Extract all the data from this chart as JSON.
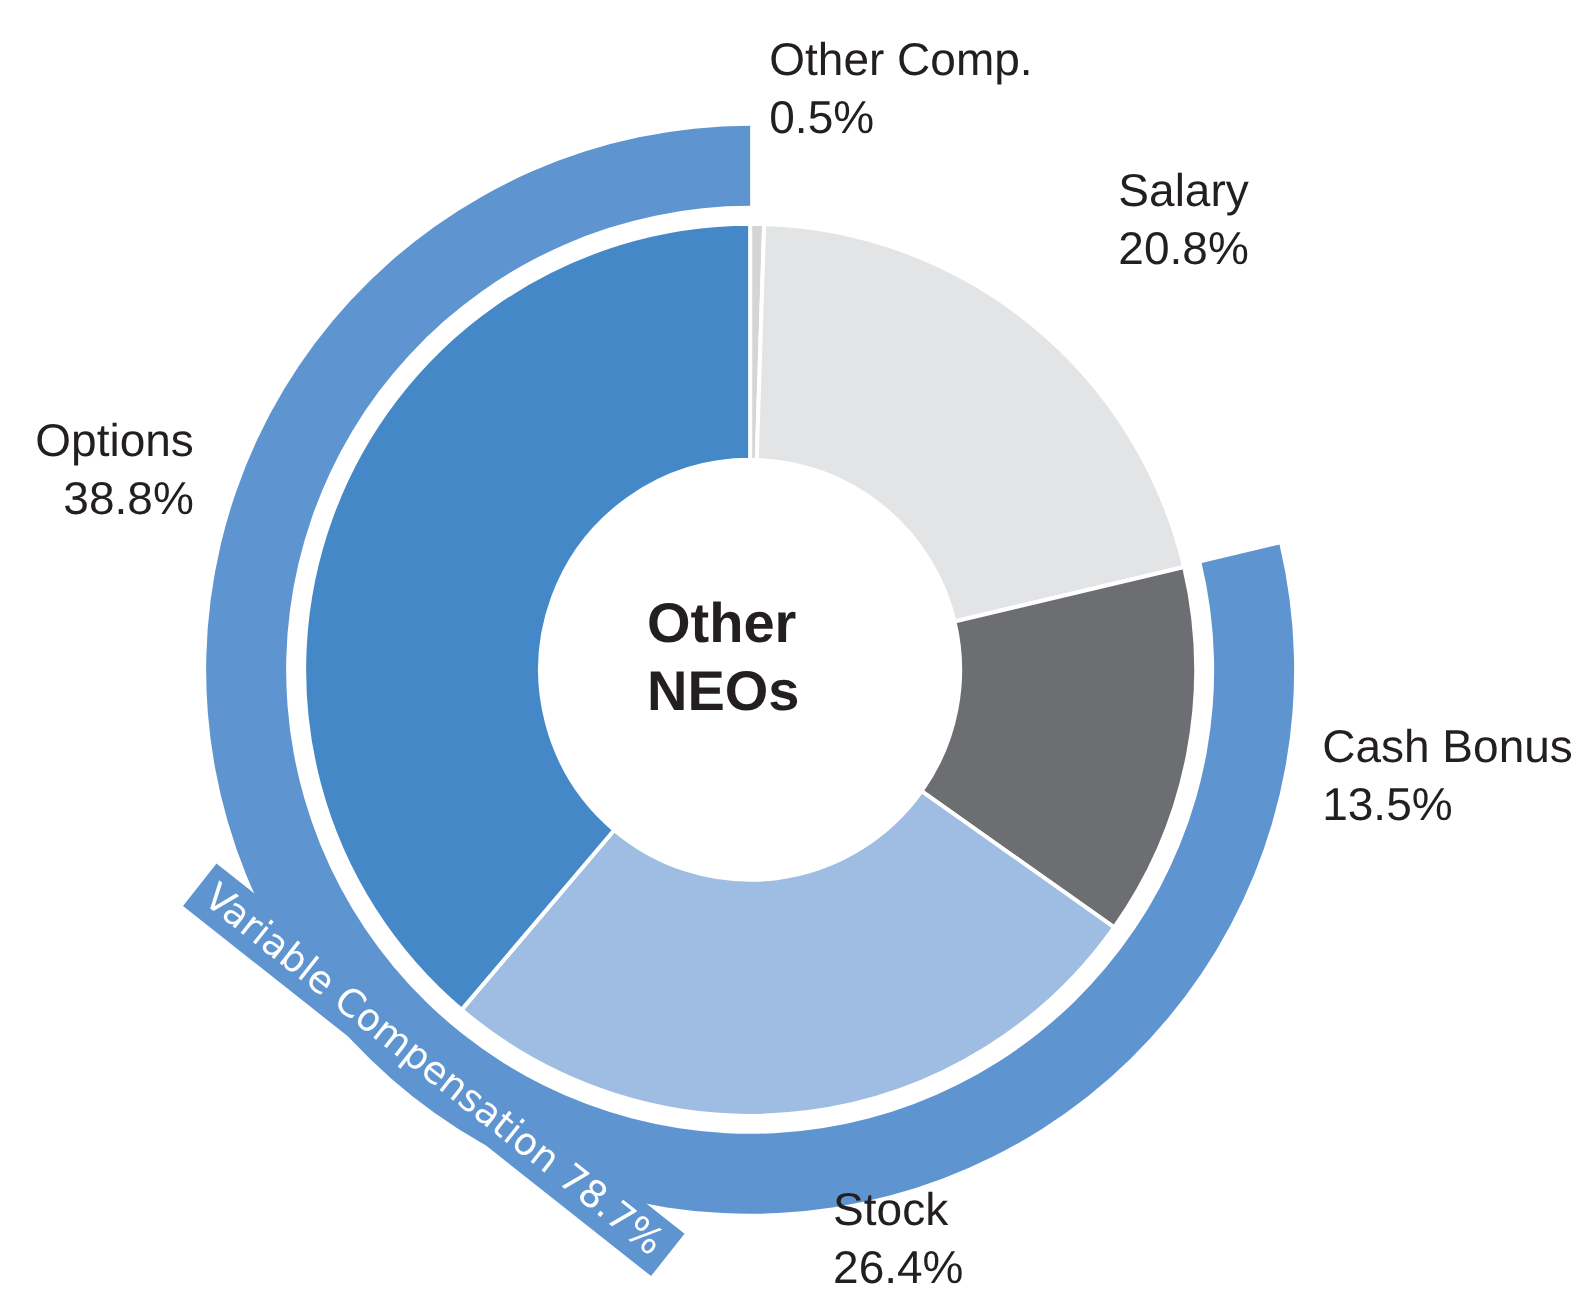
{
  "chart_data": [
    {
      "type": "pie",
      "categories": [
        "Variable Compensation"
      ],
      "values": [
        78.7
      ],
      "colors": [
        "#5e95d0"
      ],
      "value_labels": [
        "78.7%"
      ]
    },
    {
      "type": "donut",
      "title": "Other NEOs",
      "categories": [
        "Other Comp.",
        "Salary",
        "Cash Bonus",
        "Stock",
        "Options"
      ],
      "values": [
        0.5,
        20.8,
        13.5,
        26.4,
        38.8
      ],
      "colors": [
        "#d4d5d6",
        "#e3e4e5",
        "#6d6e71",
        "#9fbce2",
        "#4588c7"
      ],
      "value_labels": [
        "0.5%",
        "20.8%",
        "13.5%",
        "26.4%",
        "38.8%"
      ]
    }
  ]
}
